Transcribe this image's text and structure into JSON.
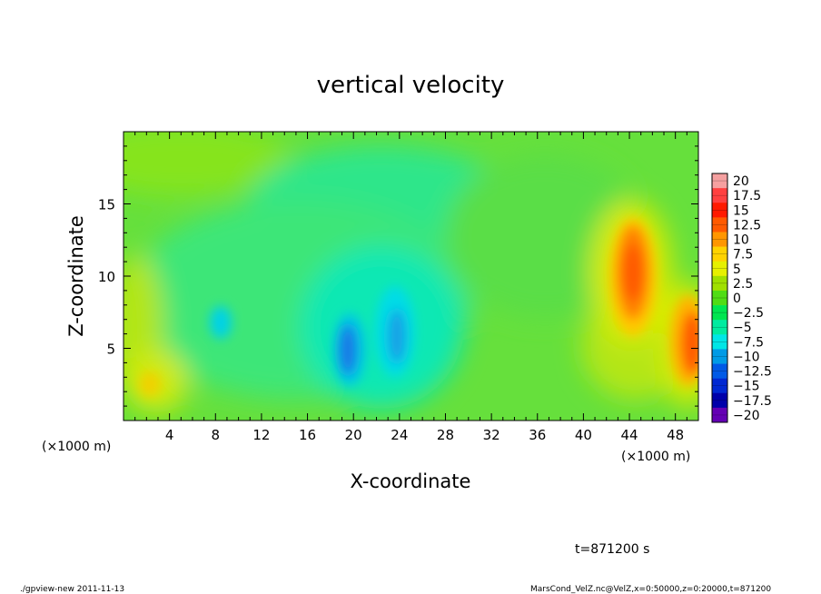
{
  "chart_data": {
    "type": "heatmap",
    "title": "vertical velocity",
    "xlabel": "X-coordinate",
    "ylabel": "Z-coordinate",
    "x_unit": "(×1000 m)",
    "y_unit": "(×1000 m)",
    "xlim": [
      0,
      50
    ],
    "ylim": [
      0,
      20
    ],
    "x_ticks": [
      "4",
      "8",
      "12",
      "16",
      "20",
      "24",
      "28",
      "32",
      "36",
      "40",
      "44",
      "48"
    ],
    "y_ticks": [
      "5",
      "10",
      "15"
    ],
    "colorbar": {
      "levels": [
        "20",
        "17.5",
        "15",
        "12.5",
        "10",
        "7.5",
        "5",
        "2.5",
        "0",
        "−2.5",
        "−5",
        "−7.5",
        "−10",
        "−12.5",
        "−15",
        "−17.5",
        "−20"
      ],
      "colors": [
        "#f5a0a0",
        "#ff4040",
        "#ff1a00",
        "#ff5a00",
        "#ff9600",
        "#ffd200",
        "#e6f000",
        "#a0e000",
        "#50dc14",
        "#00e650",
        "#00eba0",
        "#00e6e6",
        "#009be6",
        "#005ae6",
        "#0028d2",
        "#0000aa",
        "#6400b4"
      ]
    },
    "features": [
      {
        "kind": "max",
        "x": 44.5,
        "z": 10,
        "value": 12.5
      },
      {
        "kind": "max",
        "x": 49.5,
        "z": 5.5,
        "value": 12.5
      },
      {
        "kind": "max",
        "x": 2,
        "z": 2.5,
        "value": 7.5
      },
      {
        "kind": "min",
        "x": 19.5,
        "z": 5,
        "value": -10
      },
      {
        "kind": "min",
        "x": 23.5,
        "z": 6,
        "value": -7.5
      },
      {
        "kind": "min",
        "x": 8.5,
        "z": 7,
        "value": -7.5
      }
    ]
  },
  "time_label": "t=871200 s",
  "footer_left": "./gpview-new  2011-11-13",
  "footer_right": "MarsCond_VelZ.nc@VelZ,x=0:50000,z=0:20000,t=871200"
}
